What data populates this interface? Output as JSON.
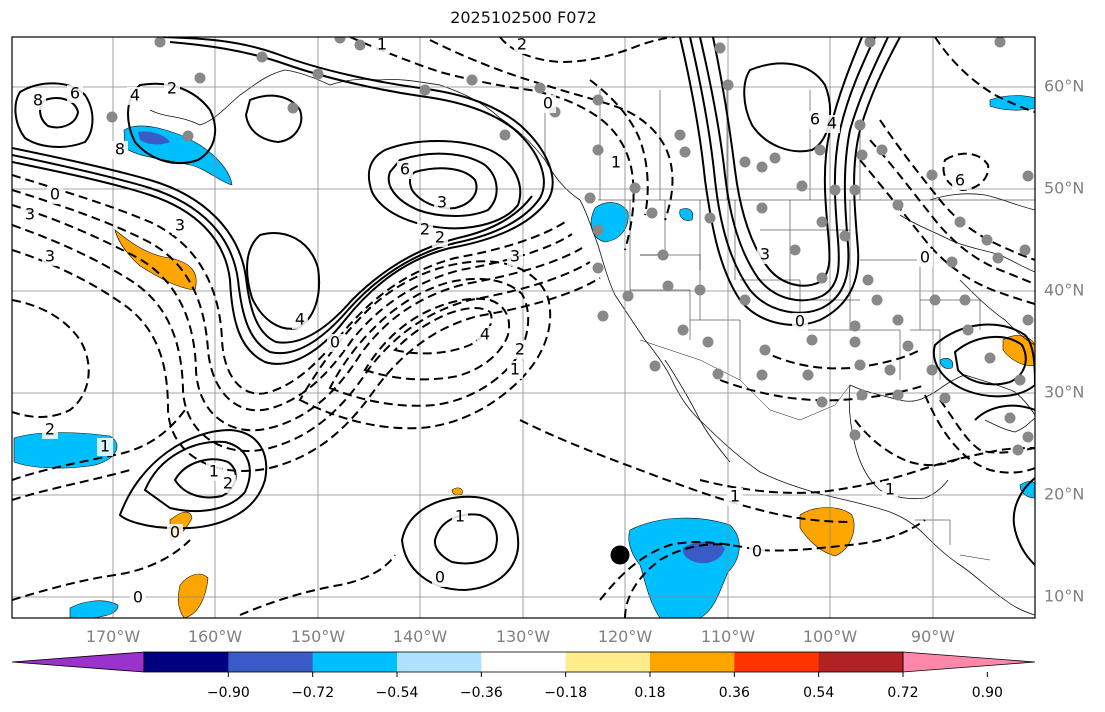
{
  "title": "2025102500 F072",
  "map": {
    "lon_labels": [
      "170°W",
      "160°W",
      "150°W",
      "140°W",
      "130°W",
      "120°W",
      "110°W",
      "100°W",
      "90°W"
    ],
    "lat_labels": [
      "60°N",
      "50°N",
      "40°N",
      "30°N",
      "20°N",
      "10°N"
    ],
    "contour_labels": [
      "8",
      "6",
      "4",
      "2",
      "8",
      "3",
      "3",
      "0",
      "1",
      "3",
      "4",
      "6",
      "3",
      "2",
      "2",
      "0",
      "4",
      "2",
      "1",
      "3",
      "0",
      "1",
      "2",
      "1",
      "1",
      "2",
      "0",
      "1",
      "0",
      "0",
      "1",
      "0",
      "2",
      "6",
      "4",
      "3",
      "6",
      "1",
      "0",
      "0"
    ],
    "colors": {
      "shade_neg_strong": "#3a5bc7",
      "shade_neg": "#00bfff",
      "shade_pos": "#ffa500",
      "station": "#888888",
      "marker": "#000000"
    }
  },
  "colorbar": {
    "colors": [
      "#9933cc",
      "#000080",
      "#3a5bc7",
      "#00bfff",
      "#b0e2ff",
      "#ffffff",
      "#ffec8b",
      "#ffa500",
      "#ff3300",
      "#b22222",
      "#ff88aa"
    ],
    "tick_labels": [
      "−0.90",
      "−0.72",
      "−0.54",
      "−0.36",
      "−0.18",
      "0.18",
      "0.36",
      "0.54",
      "0.72",
      "0.90"
    ]
  }
}
